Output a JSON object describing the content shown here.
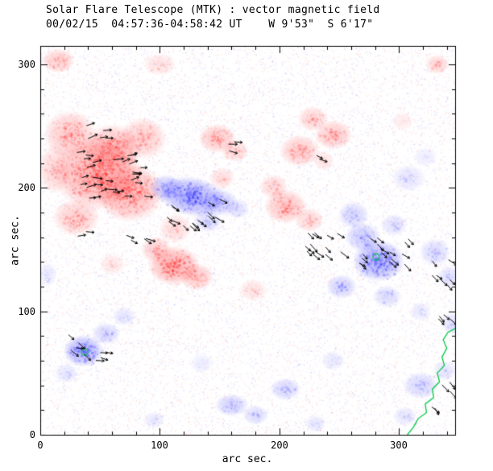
{
  "chart_data": {
    "type": "heatmap",
    "title": "Solar Flare Telescope (MTK) : vector magnetic field",
    "subtitle": "00/02/15  04:57:36-04:58:42 UT    W 9'53\"  S 6'17\"",
    "xlabel": "arc sec.",
    "ylabel": "arc sec.",
    "x_range": [
      0,
      347
    ],
    "y_range": [
      0,
      315
    ],
    "x_ticks": [
      0,
      100,
      200,
      300
    ],
    "y_ticks": [
      0,
      100,
      200,
      300
    ],
    "x_tick_labels": [
      "0",
      "100",
      "200",
      "300"
    ],
    "y_tick_labels": [
      "0",
      "100",
      "200",
      "300"
    ],
    "legend": "red = positive polarity, blue = negative polarity, ticks = transverse field vectors, green = contour",
    "colors": {
      "positive": "#ff1e1e",
      "negative": "#3232ff",
      "contour": "#00cc44",
      "vectors": "#000000",
      "frame": "#000000",
      "background": "#ffffff"
    },
    "blob_format": "x_arcsec, y_arcsec, rx, ry, rot_deg, intensity, polarity(p/n)",
    "blobs": [
      [
        48,
        212,
        38,
        30,
        0,
        0.8,
        "p"
      ],
      [
        25,
        243,
        22,
        20,
        0,
        0.55,
        "p"
      ],
      [
        75,
        196,
        28,
        24,
        0,
        0.7,
        "p"
      ],
      [
        30,
        176,
        20,
        15,
        0,
        0.5,
        "p"
      ],
      [
        86,
        240,
        20,
        17,
        0,
        0.5,
        "p"
      ],
      [
        12,
        215,
        14,
        20,
        0,
        0.4,
        "p"
      ],
      [
        60,
        232,
        24,
        20,
        0,
        0.65,
        "p"
      ],
      [
        15,
        303,
        14,
        10,
        0,
        0.5,
        "p"
      ],
      [
        100,
        300,
        14,
        9,
        0,
        0.3,
        "p"
      ],
      [
        112,
        137,
        22,
        16,
        0,
        0.8,
        "p"
      ],
      [
        131,
        128,
        14,
        11,
        0,
        0.55,
        "p"
      ],
      [
        97,
        150,
        13,
        11,
        0,
        0.5,
        "p"
      ],
      [
        113,
        167,
        14,
        12,
        0,
        0.35,
        "p"
      ],
      [
        148,
        240,
        16,
        12,
        0,
        0.55,
        "p"
      ],
      [
        163,
        230,
        12,
        9,
        0,
        0.4,
        "p"
      ],
      [
        217,
        230,
        17,
        13,
        0,
        0.55,
        "p"
      ],
      [
        245,
        243,
        16,
        12,
        0,
        0.55,
        "p"
      ],
      [
        228,
        256,
        13,
        10,
        0,
        0.45,
        "p"
      ],
      [
        205,
        185,
        18,
        14,
        0,
        0.6,
        "p"
      ],
      [
        225,
        174,
        12,
        10,
        0,
        0.4,
        "p"
      ],
      [
        195,
        201,
        12,
        10,
        0,
        0.4,
        "p"
      ],
      [
        237,
        222,
        9,
        8,
        0,
        0.3,
        "p"
      ],
      [
        332,
        300,
        10,
        8,
        0,
        0.45,
        "p"
      ],
      [
        303,
        254,
        9,
        8,
        0,
        0.2,
        "p"
      ],
      [
        178,
        117,
        12,
        9,
        0,
        0.3,
        "p"
      ],
      [
        60,
        138,
        11,
        9,
        0,
        0.25,
        "p"
      ],
      [
        152,
        208,
        11,
        9,
        0,
        0.35,
        "p"
      ],
      [
        127,
        193,
        28,
        16,
        -10,
        0.9,
        "n"
      ],
      [
        105,
        200,
        14,
        11,
        0,
        0.6,
        "n"
      ],
      [
        150,
        188,
        16,
        11,
        0,
        0.55,
        "n"
      ],
      [
        165,
        183,
        10,
        8,
        0,
        0.35,
        "n"
      ],
      [
        140,
        173,
        12,
        9,
        0,
        0.4,
        "n"
      ],
      [
        283,
        141,
        22,
        17,
        0,
        0.85,
        "n"
      ],
      [
        270,
        160,
        15,
        12,
        0,
        0.55,
        "n"
      ],
      [
        262,
        178,
        13,
        11,
        0,
        0.45,
        "n"
      ],
      [
        252,
        120,
        13,
        10,
        0,
        0.5,
        "n"
      ],
      [
        290,
        112,
        12,
        9,
        0,
        0.4,
        "n"
      ],
      [
        296,
        170,
        11,
        9,
        0,
        0.35,
        "n"
      ],
      [
        330,
        148,
        13,
        11,
        0,
        0.4,
        "n"
      ],
      [
        342,
        128,
        10,
        9,
        0,
        0.35,
        "n"
      ],
      [
        318,
        100,
        9,
        8,
        0,
        0.25,
        "n"
      ],
      [
        308,
        208,
        14,
        11,
        0,
        0.3,
        "n"
      ],
      [
        322,
        225,
        10,
        8,
        0,
        0.2,
        "n"
      ],
      [
        36,
        68,
        17,
        13,
        0,
        0.85,
        "n"
      ],
      [
        55,
        82,
        12,
        9,
        0,
        0.45,
        "n"
      ],
      [
        22,
        50,
        10,
        8,
        0,
        0.3,
        "n"
      ],
      [
        70,
        96,
        10,
        8,
        0,
        0.3,
        "n"
      ],
      [
        160,
        24,
        14,
        9,
        0,
        0.5,
        "n"
      ],
      [
        180,
        16,
        11,
        8,
        0,
        0.4,
        "n"
      ],
      [
        205,
        37,
        13,
        9,
        0,
        0.45,
        "n"
      ],
      [
        230,
        9,
        9,
        7,
        0,
        0.3,
        "n"
      ],
      [
        245,
        60,
        10,
        8,
        0,
        0.25,
        "n"
      ],
      [
        135,
        58,
        10,
        8,
        0,
        0.2,
        "n"
      ],
      [
        318,
        40,
        15,
        11,
        0,
        0.45,
        "n"
      ],
      [
        338,
        52,
        10,
        8,
        0,
        0.3,
        "n"
      ],
      [
        305,
        15,
        10,
        8,
        0,
        0.3,
        "n"
      ],
      [
        345,
        90,
        10,
        9,
        0,
        0.35,
        "n"
      ],
      [
        95,
        12,
        9,
        7,
        0,
        0.25,
        "n"
      ],
      [
        6,
        130,
        8,
        10,
        0,
        0.25,
        "n"
      ]
    ],
    "vector_format": "cx, cy, w, h, count, angle_deg, spread_deg",
    "vector_clusters": [
      [
        60,
        210,
        60,
        40,
        30,
        5,
        18
      ],
      [
        50,
        245,
        26,
        12,
        5,
        12,
        15
      ],
      [
        125,
        180,
        50,
        22,
        16,
        -35,
        12
      ],
      [
        80,
        160,
        24,
        10,
        4,
        -25,
        12
      ],
      [
        237,
        153,
        36,
        24,
        14,
        -40,
        10
      ],
      [
        288,
        146,
        44,
        28,
        16,
        -40,
        12
      ],
      [
        333,
        133,
        22,
        30,
        7,
        -45,
        12
      ],
      [
        340,
        95,
        14,
        18,
        4,
        -45,
        12
      ],
      [
        38,
        70,
        34,
        22,
        9,
        -25,
        25
      ],
      [
        334,
        33,
        18,
        24,
        5,
        -50,
        12
      ],
      [
        35,
        163,
        10,
        6,
        2,
        0,
        10
      ],
      [
        158,
        234,
        12,
        8,
        3,
        -10,
        10
      ],
      [
        229,
        225,
        10,
        6,
        2,
        -20,
        10
      ]
    ],
    "contour": [
      [
        347,
        86
      ],
      [
        341,
        83
      ],
      [
        337,
        77
      ],
      [
        340,
        70
      ],
      [
        336,
        63
      ],
      [
        338,
        56
      ],
      [
        332,
        50
      ],
      [
        334,
        43
      ],
      [
        328,
        37
      ],
      [
        329,
        30
      ],
      [
        322,
        25
      ],
      [
        323,
        18
      ],
      [
        316,
        13
      ],
      [
        312,
        6
      ],
      [
        307,
        0
      ]
    ],
    "contour_circles": [
      [
        281,
        144,
        4
      ],
      [
        37,
        67,
        4
      ]
    ],
    "noise": {
      "seed": 20000215,
      "count": 15000
    }
  }
}
